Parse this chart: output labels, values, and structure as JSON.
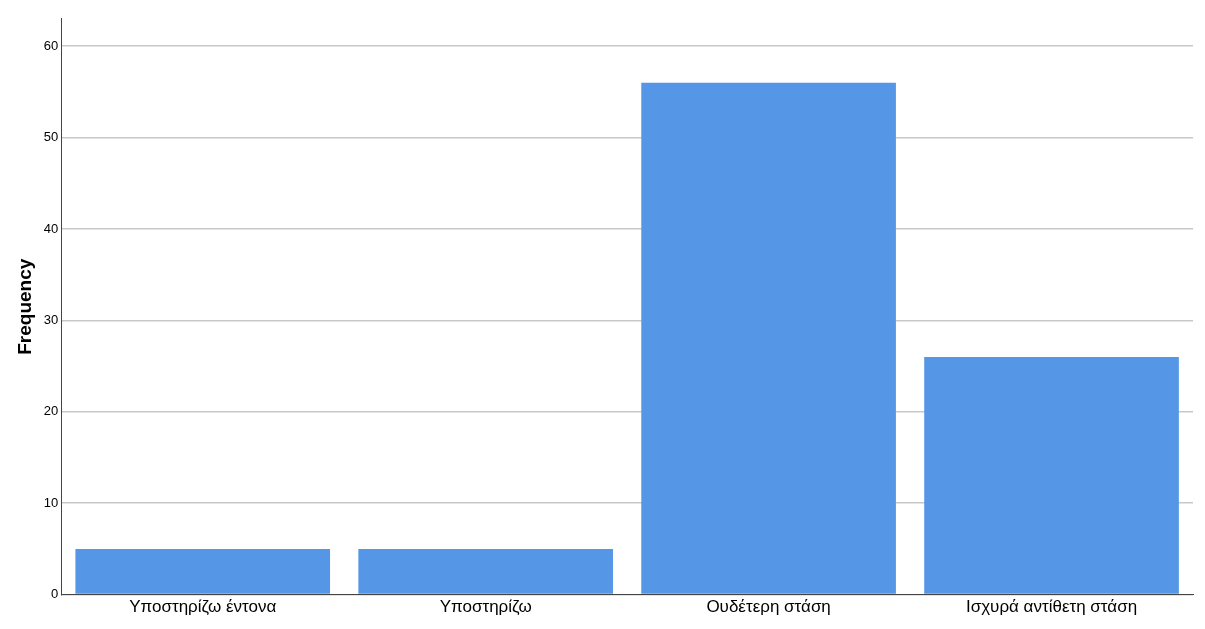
{
  "chart_data": {
    "type": "bar",
    "ylabel": "Frequency",
    "categories": [
      "Υποστηρίζω έντονα",
      "Υποστηρίζω",
      "Ουδέτερη στάση",
      "Ισχυρά αντίθετη στάση"
    ],
    "values": [
      5,
      5,
      56,
      26
    ],
    "color": "#5596e6",
    "ylim": [
      0,
      63
    ],
    "yticks": [
      0,
      10,
      20,
      30,
      40,
      50,
      60
    ],
    "grid": "y",
    "legend": false
  }
}
